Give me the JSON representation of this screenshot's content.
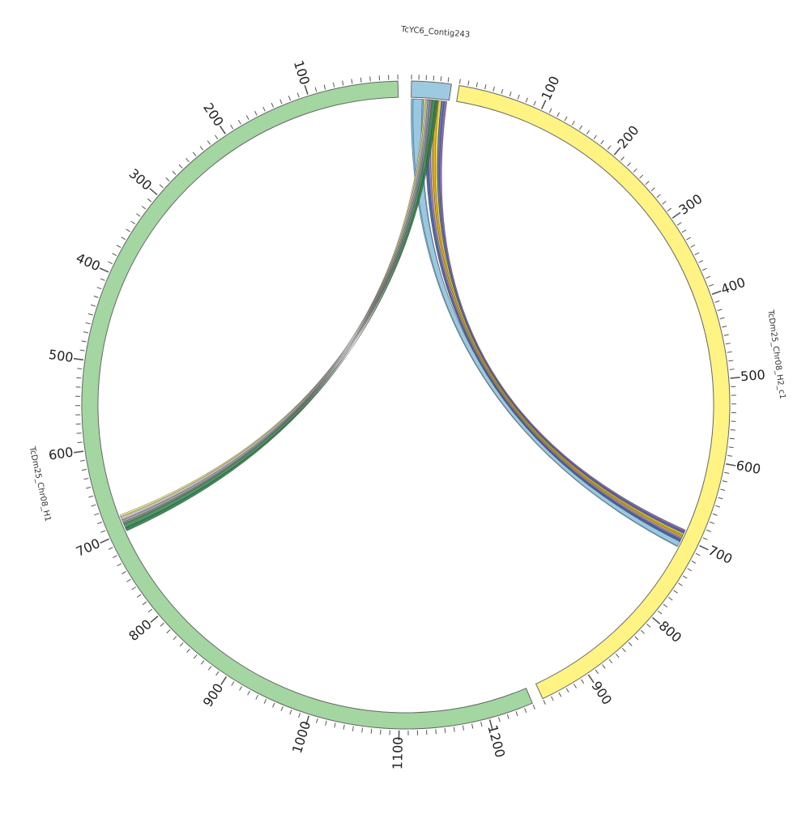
{
  "figure": {
    "type": "circos",
    "background": "#ffffff"
  },
  "segments": [
    {
      "id": "contig",
      "name": "TcYC6_Contig243",
      "color": "#9ecae1",
      "length": 55,
      "tick_step": 10,
      "label_step": null,
      "labels_reversed": false
    },
    {
      "id": "h2",
      "name": "TcDm25_Chr08_H2_c1",
      "color": "#fff383",
      "length": 960,
      "tick_step": 10,
      "label_step": 100,
      "labels_reversed": false
    },
    {
      "id": "h1",
      "name": "TcDm25_Chr08_H1",
      "color": "#a3d6a1",
      "length": 1250,
      "tick_step": 10,
      "label_step": 100,
      "labels_reversed": true
    }
  ],
  "ribbons": [
    {
      "group": "to_h2",
      "color": "#6baed6",
      "contig": [
        0,
        18
      ],
      "target": [
        705,
        713
      ]
    },
    {
      "group": "to_h2",
      "color": "#9ecae1",
      "contig": [
        3,
        16
      ],
      "target": [
        698,
        712
      ]
    },
    {
      "group": "to_h2",
      "color": "#3a5ba0",
      "contig": [
        23,
        29
      ],
      "target": [
        703,
        706
      ]
    },
    {
      "group": "to_h2",
      "color": "#8e7cc3",
      "contig": [
        28,
        32
      ],
      "target": [
        700,
        703
      ]
    },
    {
      "group": "to_h2",
      "color": "#e0a97a",
      "contig": [
        32,
        36
      ],
      "target": [
        698,
        701
      ]
    },
    {
      "group": "to_h2",
      "color": "#d4b106",
      "contig": [
        36,
        41
      ],
      "target": [
        696,
        699
      ]
    },
    {
      "group": "to_h2",
      "color": "#f2d43a",
      "contig": [
        40,
        44
      ],
      "target": [
        694,
        697
      ]
    },
    {
      "group": "to_h2",
      "color": "#4a69bd",
      "contig": [
        44,
        48
      ],
      "target": [
        692,
        695
      ]
    },
    {
      "group": "to_h2",
      "color": "#7b5ea7",
      "contig": [
        48,
        52
      ],
      "target": [
        690,
        693
      ]
    },
    {
      "group": "to_h1",
      "color": "#f5eb6d",
      "contig": [
        19,
        22
      ],
      "target": [
        680,
        683
      ]
    },
    {
      "group": "to_h1",
      "color": "#bdbdbd",
      "contig": [
        21,
        25
      ],
      "target": [
        682,
        687
      ]
    },
    {
      "group": "to_h1",
      "color": "#9e9e9e",
      "contig": [
        24,
        28
      ],
      "target": [
        686,
        690
      ]
    },
    {
      "group": "to_h1",
      "color": "#8d8d8d",
      "contig": [
        27,
        31
      ],
      "target": [
        689,
        692
      ]
    },
    {
      "group": "to_h1",
      "color": "#3d8b56",
      "contig": [
        30,
        35
      ],
      "target": [
        691,
        697
      ]
    },
    {
      "group": "to_h1",
      "color": "#2e7d4a",
      "contig": [
        35,
        39
      ],
      "target": [
        696,
        700
      ]
    }
  ]
}
